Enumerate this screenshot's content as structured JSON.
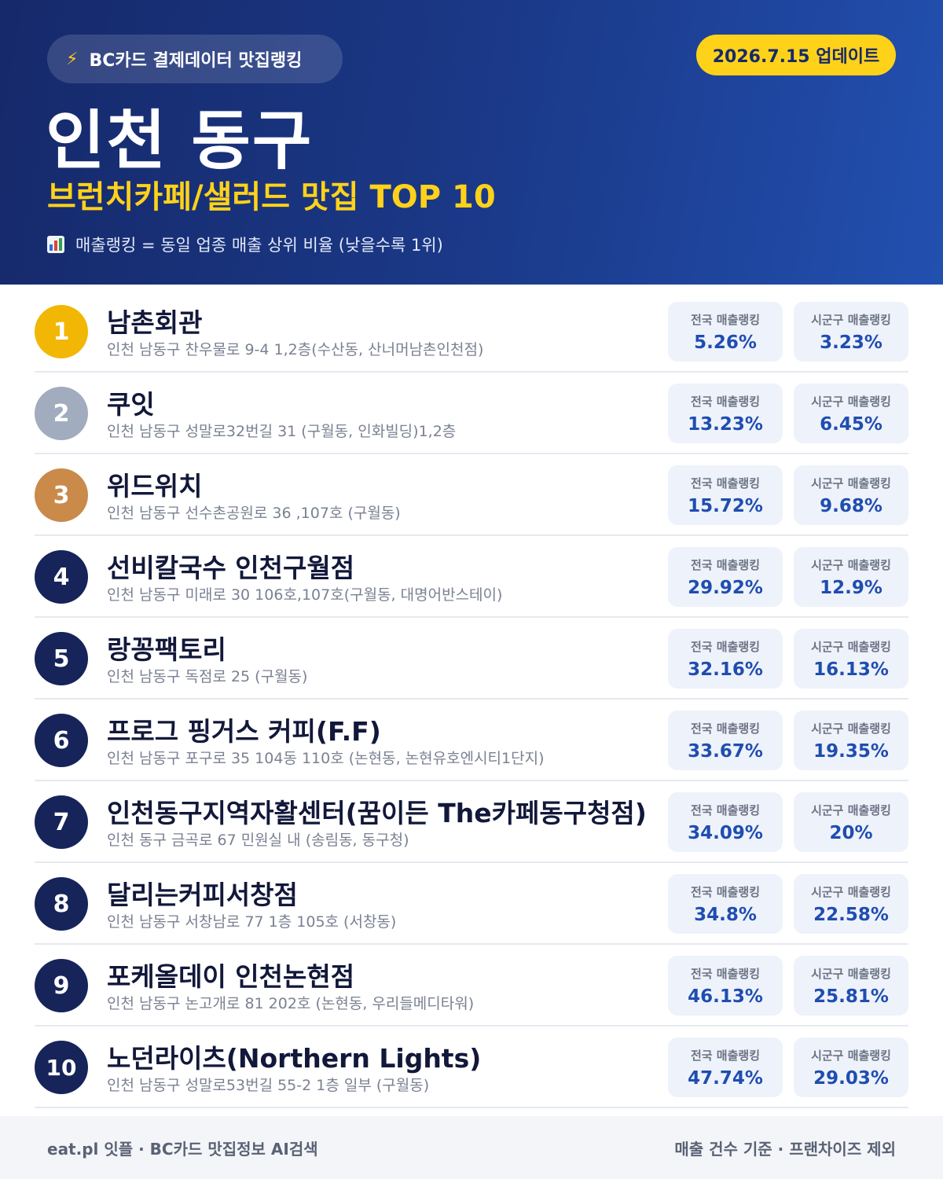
{
  "header": {
    "brand_icon": "lightning-bolt-icon",
    "brand_label": "BC카드 결제데이터 맛집랭킹",
    "update_label": "2026.7.15 업데이트",
    "title": "인천 동구",
    "subtitle": "브런치카페/샐러드 맛집 TOP 10",
    "note_icon": "bar-chart-icon",
    "note": "매출랭킹 = 동일 업종 매출 상위 비율 (낮을수록 1위)"
  },
  "colors": {
    "header_bg": "#1b3a8a",
    "accent_yellow": "#ffd21a",
    "rank_gold": "#f2b705",
    "rank_silver": "#a2acbf",
    "rank_bronze": "#c98a4a",
    "rank_default": "#16245a",
    "value_blue": "#1f4db0"
  },
  "list": {
    "national_label": "전국 매출랭킹",
    "local_label": "시군구 매출랭킹",
    "items": [
      {
        "rank": "1",
        "name": "남촌회관",
        "address": "인천 남동구 찬우물로 9-4 1,2층(수산동, 산너머남촌인천점)",
        "national": "5.26%",
        "local": "3.23%"
      },
      {
        "rank": "2",
        "name": "쿠잇",
        "address": "인천 남동구 성말로32번길 31 (구월동, 인화빌딩)1,2층",
        "national": "13.23%",
        "local": "6.45%"
      },
      {
        "rank": "3",
        "name": "위드위치",
        "address": "인천 남동구 선수촌공원로 36 ,107호 (구월동)",
        "national": "15.72%",
        "local": "9.68%"
      },
      {
        "rank": "4",
        "name": "선비칼국수 인천구월점",
        "address": "인천 남동구 미래로 30 106호,107호(구월동, 대명어반스테이)",
        "national": "29.92%",
        "local": "12.9%"
      },
      {
        "rank": "5",
        "name": "랑꽁팩토리",
        "address": "인천 남동구 독점로 25 (구월동)",
        "national": "32.16%",
        "local": "16.13%"
      },
      {
        "rank": "6",
        "name": "프로그 핑거스 커피(F.F)",
        "address": "인천 남동구 포구로 35 104동 110호 (논현동, 논현유호엔시티1단지)",
        "national": "33.67%",
        "local": "19.35%"
      },
      {
        "rank": "7",
        "name": "인천동구지역자활센터(꿈이든 The카페동구청점)",
        "address": "인천 동구 금곡로 67 민원실 내 (송림동, 동구청)",
        "national": "34.09%",
        "local": "20%"
      },
      {
        "rank": "8",
        "name": "달리는커피서창점",
        "address": "인천 남동구 서창남로 77 1층 105호 (서창동)",
        "national": "34.8%",
        "local": "22.58%"
      },
      {
        "rank": "9",
        "name": "포케올데이 인천논현점",
        "address": "인천 남동구 논고개로 81 202호 (논현동, 우리들메디타워)",
        "national": "46.13%",
        "local": "25.81%"
      },
      {
        "rank": "10",
        "name": "노던라이츠(Northern Lights)",
        "address": "인천 남동구 성말로53번길 55-2 1층 일부 (구월동)",
        "national": "47.74%",
        "local": "29.03%"
      }
    ]
  },
  "footer": {
    "left": "eat.pl 잇플 · BC카드 맛집정보 AI검색",
    "right": "매출 건수 기준 · 프랜차이즈 제외"
  }
}
